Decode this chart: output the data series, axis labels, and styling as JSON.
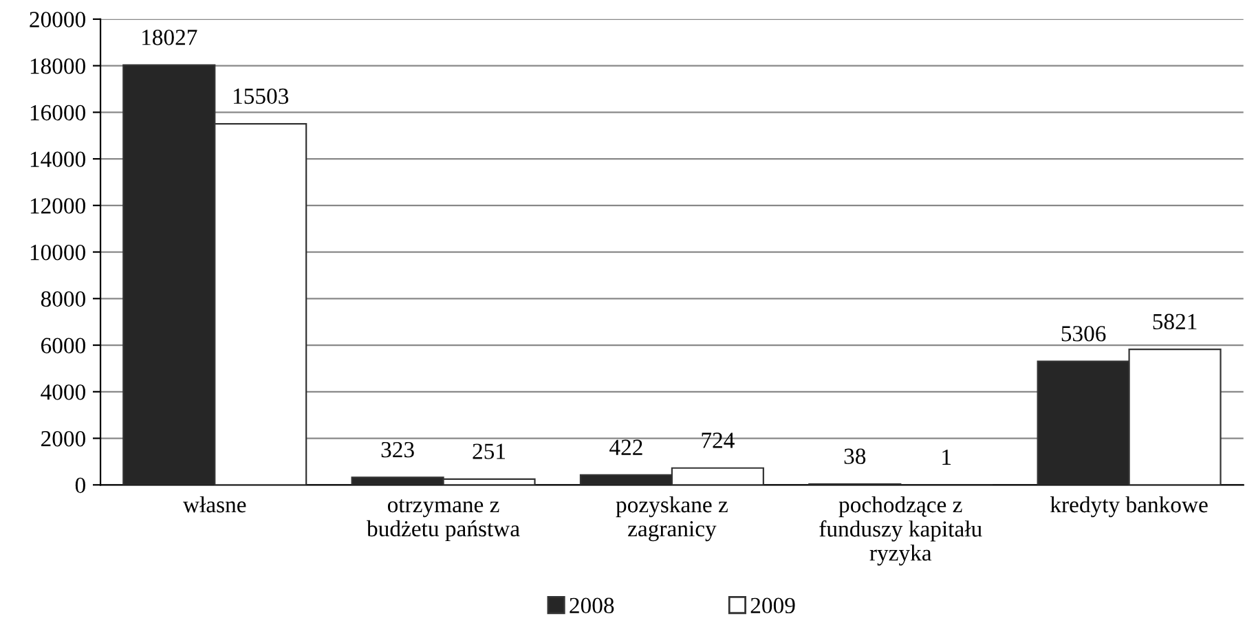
{
  "chart_data": {
    "type": "bar",
    "categories": [
      "własne",
      "otrzymane z\nbudżetu państwa",
      "pozyskane z\nzagranicy",
      "pochodzące z\nfunduszy kapitału\nryzyka",
      "kredyty bankowe"
    ],
    "series": [
      {
        "name": "2008",
        "color": "#262626",
        "values": [
          18027,
          323,
          422,
          38,
          5306
        ]
      },
      {
        "name": "2009",
        "color": "#ffffff",
        "values": [
          15503,
          251,
          724,
          1,
          5821
        ]
      }
    ],
    "ylim": [
      0,
      20000
    ],
    "yticks": [
      0,
      2000,
      4000,
      6000,
      8000,
      10000,
      12000,
      14000,
      16000,
      18000,
      20000
    ],
    "grid": "y",
    "legend": "bottom",
    "data_labels": true
  }
}
